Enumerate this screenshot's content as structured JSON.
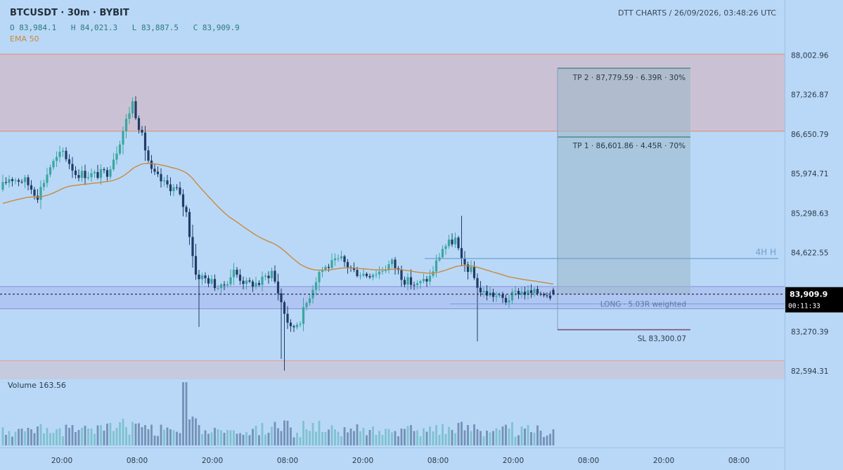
{
  "header": {
    "symbol": "BTCUSDT · 30m · BYBIT",
    "open": "O 83,984.1",
    "high": "H 84,021.3",
    "low": "L 83,887.5",
    "close": "C 83,909.9",
    "ema_label": "EMA 50",
    "brand": "DTT CHARTS  /  26/09/2026, 03:48:26 UTC"
  },
  "volume_label": "Volume  163.56",
  "price_axis": {
    "ticks": [
      "88,002.96",
      "87,326.87",
      "86,650.79",
      "85,974.71",
      "85,298.63",
      "84,622.55",
      "83,270.39",
      "82,594.31"
    ],
    "tick_values": [
      88002.96,
      87326.87,
      86650.79,
      85974.71,
      85298.63,
      84622.55,
      83270.39,
      82594.31
    ],
    "current_price": "83,909.9",
    "countdown": "00:11:33"
  },
  "time_axis": {
    "labels": [
      "20:00",
      "08:00",
      "20:00",
      "08:00",
      "20:00",
      "08:00",
      "20:00",
      "08:00",
      "20:00",
      "08:00"
    ]
  },
  "annotations": {
    "tp2": "TP 2 · 87,779.59 · 6.39R · 30%",
    "tp1": "TP 1 · 86,601.86 · 4.45R · 70%",
    "long": "LONG · 5.03R weighted",
    "sl": "SL 83,300.07",
    "level_4h": "4H H"
  },
  "colors": {
    "background": "#b9d8f7",
    "candle_up": "#3aa6a0",
    "candle_down": "#1f3b66",
    "ema": "#c98a3a",
    "zone_red": "#e0a8a8",
    "zone_blue": "#a9b8ee",
    "tp_box": "#9bb8c8",
    "level_line": "#6f9fd0",
    "price_tag": "#000000"
  },
  "chart_data": {
    "type": "candlestick",
    "title": "BTCUSDT · 30m · BYBIT",
    "y_range": [
      82450,
      88250
    ],
    "grid": false,
    "overlays": [
      {
        "name": "EMA 50",
        "type": "line"
      }
    ],
    "levels": {
      "tp2": 87779.59,
      "tp1": 86601.86,
      "entry": 83909.9,
      "sl": 83300.07,
      "h4_high": 84520,
      "supply_zone": [
        86700,
        88020
      ],
      "demand_zone": [
        83660,
        84040
      ],
      "lower_zone": [
        82450,
        82770
      ]
    },
    "candles": [],
    "ema": [],
    "volume": []
  }
}
